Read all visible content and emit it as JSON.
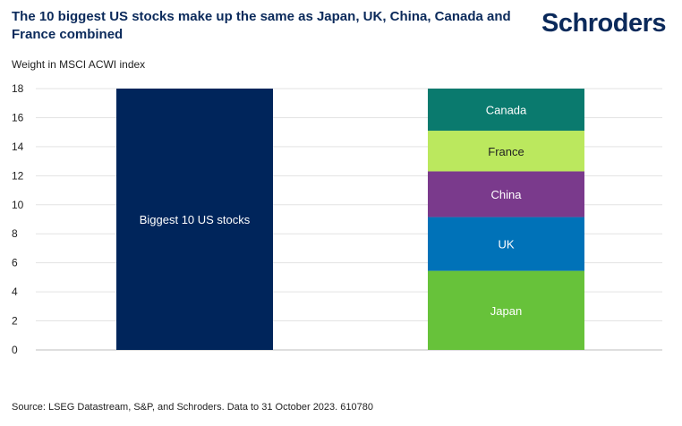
{
  "title": "The 10 biggest US stocks make up the same as Japan, UK, China, Canada and France combined",
  "logo": "Schroders",
  "source": "Source: LSEG Datastream, S&P, and Schroders. Data to 31 October 2023. 610780",
  "chart_data": {
    "type": "bar",
    "stacked": true,
    "ylabel": "Weight in MSCI ACWI index",
    "ylim": [
      0,
      18
    ],
    "yticks": [
      0,
      2,
      4,
      6,
      8,
      10,
      12,
      14,
      16,
      18
    ],
    "grid": true,
    "categories": [
      "",
      ""
    ],
    "bars": [
      {
        "segments": [
          {
            "name": "Biggest 10 US stocks",
            "value": 18.0,
            "color": "#00255b",
            "text_color": "#ffffff"
          }
        ]
      },
      {
        "segments": [
          {
            "name": "Japan",
            "value": 5.45,
            "color": "#67c23a",
            "text_color": "#ffffff"
          },
          {
            "name": "UK",
            "value": 3.7,
            "color": "#0072b8",
            "text_color": "#ffffff"
          },
          {
            "name": "China",
            "value": 3.15,
            "color": "#7a3a8c",
            "text_color": "#ffffff"
          },
          {
            "name": "France",
            "value": 2.8,
            "color": "#bbe85e",
            "text_color": "#222222"
          },
          {
            "name": "Canada",
            "value": 2.9,
            "color": "#0a7a6e",
            "text_color": "#ffffff"
          }
        ]
      }
    ]
  }
}
